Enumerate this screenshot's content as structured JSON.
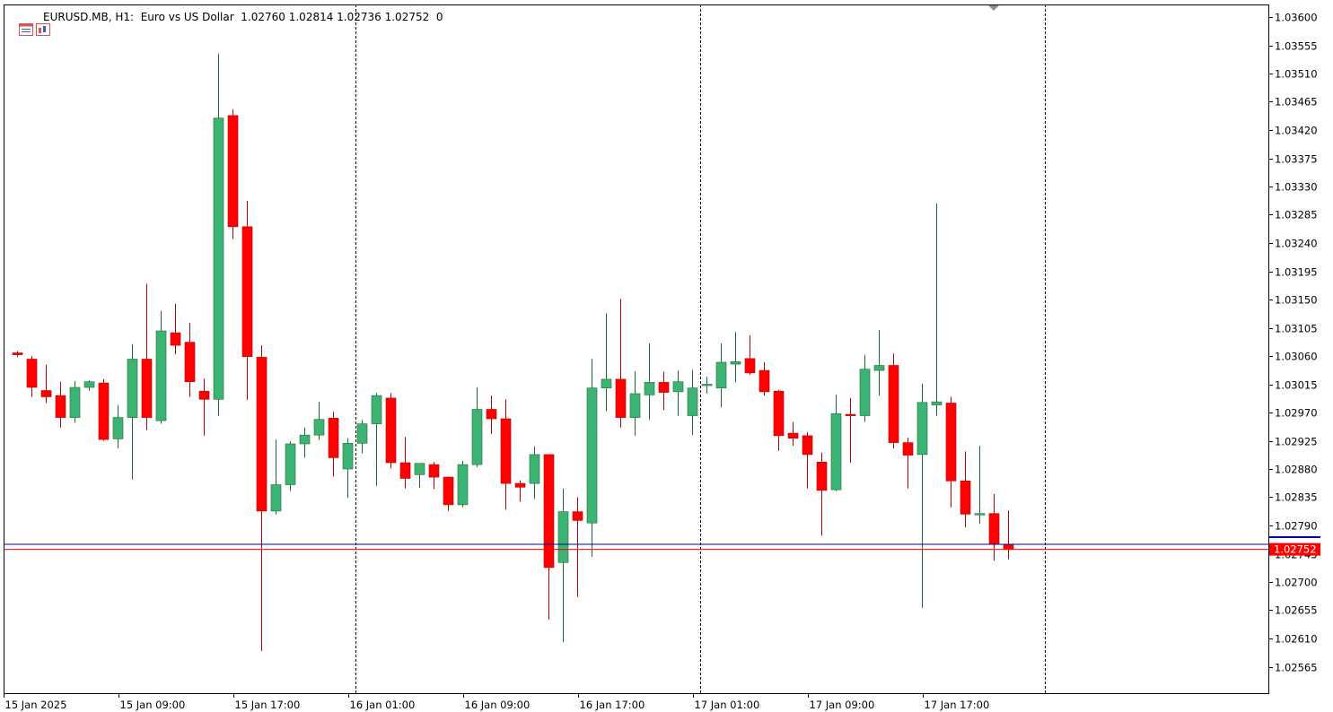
{
  "header": {
    "symbol": "EURUSD.MB, H1:",
    "description": "Euro vs US Dollar",
    "ohlc": "1.02760 1.02814 1.02736 1.02752",
    "volume": "0",
    "icons": [
      "window-list-icon",
      "chart-properties-icon"
    ]
  },
  "colors": {
    "bull": "#3cb371",
    "bear": "#ff0000",
    "wick_bull": "#1e6b3a",
    "wick_bear": "#b40000",
    "ask_line": "#0000aa",
    "bid_line": "#ff0000",
    "price_tag_bg": "#ff0000",
    "price_tag_text": "#ffffff",
    "separator": "#000000",
    "axis": "#000000"
  },
  "chart_data": {
    "type": "candlestick",
    "timeframe": "H1",
    "grid": false,
    "ylim": [
      1.0252,
      1.03625
    ],
    "y_ticks": [
      "1.03600",
      "1.03555",
      "1.03510",
      "1.03465",
      "1.03420",
      "1.03375",
      "1.03330",
      "1.03285",
      "1.03240",
      "1.03195",
      "1.03150",
      "1.03105",
      "1.03060",
      "1.03015",
      "1.02970",
      "1.02925",
      "1.02880",
      "1.02835",
      "1.02790",
      "1.02745",
      "1.02700",
      "1.02655",
      "1.02610",
      "1.02565"
    ],
    "x_ticks": [
      {
        "index": 0,
        "label": "15 Jan 2025"
      },
      {
        "index": 8,
        "label": "15 Jan 09:00"
      },
      {
        "index": 16,
        "label": "15 Jan 17:00"
      },
      {
        "index": 24,
        "label": "16 Jan 01:00"
      },
      {
        "index": 32,
        "label": "16 Jan 09:00"
      },
      {
        "index": 40,
        "label": "16 Jan 17:00"
      },
      {
        "index": 48,
        "label": "17 Jan 01:00"
      },
      {
        "index": 56,
        "label": "17 Jan 09:00"
      },
      {
        "index": 64,
        "label": "17 Jan 17:00"
      }
    ],
    "day_separators": [
      23,
      47,
      71
    ],
    "current_price": "1.02752",
    "bid": 1.02752,
    "ask": 1.0276,
    "candles": [
      [
        1.03065,
        1.03068,
        1.03059,
        1.03062
      ],
      [
        1.03055,
        1.0306,
        1.02995,
        1.0301
      ],
      [
        1.03005,
        1.03046,
        1.02985,
        1.02995
      ],
      [
        1.02997,
        1.03019,
        1.02946,
        1.02962
      ],
      [
        1.02962,
        1.0302,
        1.02954,
        1.0301
      ],
      [
        1.0301,
        1.03021,
        1.03005,
        1.03019
      ],
      [
        1.03017,
        1.03023,
        1.02925,
        1.02927
      ],
      [
        1.02928,
        1.02982,
        1.02913,
        1.02962
      ],
      [
        1.02962,
        1.03079,
        1.02863,
        1.03055
      ],
      [
        1.03055,
        1.03175,
        1.02942,
        1.02962
      ],
      [
        1.02957,
        1.03132,
        1.02952,
        1.031
      ],
      [
        1.03097,
        1.03143,
        1.03063,
        1.03077
      ],
      [
        1.03082,
        1.03113,
        1.02995,
        1.03019
      ],
      [
        1.03004,
        1.03024,
        1.02933,
        1.02991
      ],
      [
        1.02991,
        1.03542,
        1.02965,
        1.03439
      ],
      [
        1.03443,
        1.03453,
        1.03246,
        1.03266
      ],
      [
        1.03266,
        1.03307,
        1.0299,
        1.03059
      ],
      [
        1.03058,
        1.03077,
        1.0259,
        1.02813
      ],
      [
        1.02813,
        1.02927,
        1.02808,
        1.02855
      ],
      [
        1.02855,
        1.02924,
        1.02845,
        1.0292
      ],
      [
        1.0292,
        1.02946,
        1.02898,
        1.02934
      ],
      [
        1.02934,
        1.02987,
        1.02926,
        1.02959
      ],
      [
        1.02961,
        1.02971,
        1.02868,
        1.02898
      ],
      [
        1.0288,
        1.02929,
        1.02834,
        1.02921
      ],
      [
        1.02921,
        1.02958,
        1.02905,
        1.02952
      ],
      [
        1.02952,
        1.03001,
        1.02853,
        1.02997
      ],
      [
        1.02993,
        1.03001,
        1.02881,
        1.0289
      ],
      [
        1.0289,
        1.02931,
        1.02849,
        1.02865
      ],
      [
        1.02871,
        1.02889,
        1.0285,
        1.02889
      ],
      [
        1.02887,
        1.02891,
        1.02848,
        1.02867
      ],
      [
        1.02867,
        1.02868,
        1.02813,
        1.02823
      ],
      [
        1.02823,
        1.02893,
        1.02819,
        1.02887
      ],
      [
        1.02887,
        1.0301,
        1.02883,
        1.02975
      ],
      [
        1.02975,
        1.02997,
        1.02936,
        1.0296
      ],
      [
        1.0296,
        1.02991,
        1.02815,
        1.02857
      ],
      [
        1.02857,
        1.02862,
        1.02828,
        1.02851
      ],
      [
        1.02857,
        1.02916,
        1.02832,
        1.02903
      ],
      [
        1.02903,
        1.029,
        1.0264,
        1.02723
      ],
      [
        1.02731,
        1.02849,
        1.02604,
        1.02812
      ],
      [
        1.02812,
        1.02835,
        1.02676,
        1.02798
      ],
      [
        1.02794,
        1.03055,
        1.0274,
        1.03009
      ],
      [
        1.03009,
        1.03128,
        1.02972,
        1.03023
      ],
      [
        1.03023,
        1.03151,
        1.02946,
        1.02962
      ],
      [
        1.02962,
        1.03036,
        1.02933,
        1.03
      ],
      [
        1.02998,
        1.0308,
        1.02958,
        1.03018
      ],
      [
        1.03018,
        1.03035,
        1.02974,
        1.03002
      ],
      [
        1.03003,
        1.03037,
        1.02965,
        1.03019
      ],
      [
        1.02965,
        1.03038,
        1.02934,
        1.03009
      ],
      [
        1.03015,
        1.03027,
        1.03,
        1.03015
      ],
      [
        1.03009,
        1.0308,
        1.02978,
        1.0305
      ],
      [
        1.03047,
        1.03098,
        1.03018,
        1.03051
      ],
      [
        1.03056,
        1.03093,
        1.0303,
        1.03033
      ],
      [
        1.03037,
        1.0305,
        1.02997,
        1.03003
      ],
      [
        1.03004,
        1.03006,
        1.02909,
        1.02933
      ],
      [
        1.02937,
        1.02955,
        1.02917,
        1.02929
      ],
      [
        1.02933,
        1.02939,
        1.02849,
        1.02903
      ],
      [
        1.02891,
        1.02906,
        1.02774,
        1.02846
      ],
      [
        1.02847,
        1.02998,
        1.02845,
        1.02968
      ],
      [
        1.02967,
        1.02993,
        1.0289,
        1.02965
      ],
      [
        1.02965,
        1.03062,
        1.02955,
        1.03039
      ],
      [
        1.03037,
        1.03101,
        1.02997,
        1.03045
      ],
      [
        1.03045,
        1.03064,
        1.02913,
        1.02922
      ],
      [
        1.02922,
        1.0293,
        1.02849,
        1.02902
      ],
      [
        1.02903,
        1.03016,
        1.02659,
        1.02986
      ],
      [
        1.02982,
        1.03303,
        1.02965,
        1.02987
      ],
      [
        1.02985,
        1.02995,
        1.02819,
        1.02861
      ],
      [
        1.02861,
        1.02908,
        1.02787,
        1.02808
      ],
      [
        1.02807,
        1.02917,
        1.02793,
        1.02809
      ],
      [
        1.02809,
        1.0284,
        1.02734,
        1.0276
      ],
      [
        1.0276,
        1.02814,
        1.02736,
        1.02752
      ]
    ]
  }
}
